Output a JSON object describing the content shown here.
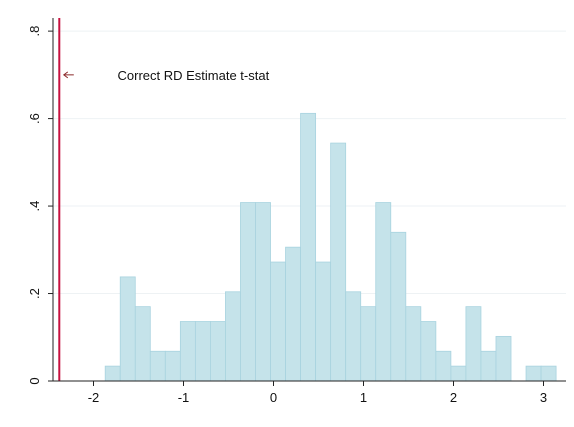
{
  "chart_data": {
    "type": "bar",
    "title": "",
    "xlabel": "",
    "ylabel": "",
    "xlim": [
      -2.45,
      3.25
    ],
    "ylim": [
      0,
      0.83
    ],
    "x_ticks": [
      {
        "value": -2,
        "label": "-2"
      },
      {
        "value": -1,
        "label": "-1"
      },
      {
        "value": 0,
        "label": "0"
      },
      {
        "value": 1,
        "label": "1"
      },
      {
        "value": 2,
        "label": "2"
      },
      {
        "value": 3,
        "label": "3"
      }
    ],
    "y_ticks": [
      {
        "value": 0,
        "label": "0"
      },
      {
        "value": 0.2,
        "label": ".2"
      },
      {
        "value": 0.4,
        "label": ".4"
      },
      {
        "value": 0.6,
        "label": ".6"
      },
      {
        "value": 0.8,
        "label": ".8"
      }
    ],
    "grid": true,
    "bin_width": 0.167,
    "bins": [
      {
        "start": -1.87,
        "density": 0.034
      },
      {
        "start": -1.703,
        "density": 0.238
      },
      {
        "start": -1.536,
        "density": 0.17
      },
      {
        "start": -1.369,
        "density": 0.068
      },
      {
        "start": -1.202,
        "density": 0.068
      },
      {
        "start": -1.035,
        "density": 0.136
      },
      {
        "start": -0.868,
        "density": 0.136
      },
      {
        "start": -0.701,
        "density": 0.136
      },
      {
        "start": -0.534,
        "density": 0.204
      },
      {
        "start": -0.367,
        "density": 0.408
      },
      {
        "start": -0.2,
        "density": 0.408
      },
      {
        "start": -0.033,
        "density": 0.272
      },
      {
        "start": 0.134,
        "density": 0.306
      },
      {
        "start": 0.301,
        "density": 0.612
      },
      {
        "start": 0.468,
        "density": 0.272
      },
      {
        "start": 0.635,
        "density": 0.544
      },
      {
        "start": 0.802,
        "density": 0.204
      },
      {
        "start": 0.969,
        "density": 0.17
      },
      {
        "start": 1.136,
        "density": 0.408
      },
      {
        "start": 1.303,
        "density": 0.34
      },
      {
        "start": 1.47,
        "density": 0.17
      },
      {
        "start": 1.637,
        "density": 0.136
      },
      {
        "start": 1.804,
        "density": 0.068
      },
      {
        "start": 1.971,
        "density": 0.034
      },
      {
        "start": 2.138,
        "density": 0.17
      },
      {
        "start": 2.305,
        "density": 0.068
      },
      {
        "start": 2.472,
        "density": 0.102
      },
      {
        "start": 2.806,
        "density": 0.034
      },
      {
        "start": 2.973,
        "density": 0.034
      }
    ],
    "reference_line": {
      "x": -2.38,
      "color": "#c8103e"
    },
    "annotation": {
      "text": "Correct RD Estimate t-stat",
      "x": -1.8,
      "y": 0.7,
      "arrow_to_x": -2.33,
      "color": "#8b2a2a"
    },
    "colors": {
      "bar_fill": "#c5e3ea",
      "bar_stroke": "#a8d3df",
      "axis": "#222222",
      "grid": "#eef2f4"
    }
  }
}
